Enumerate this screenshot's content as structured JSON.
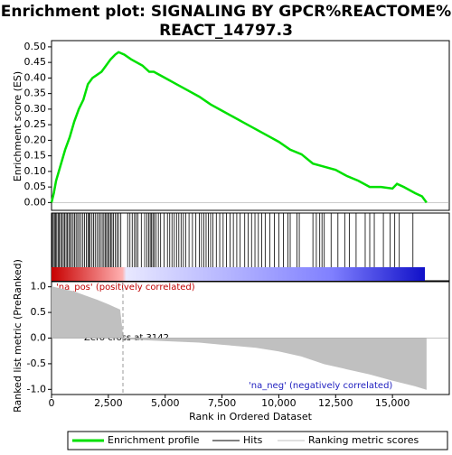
{
  "title": "Enrichment plot: SIGNALING BY GPCR%REACTOME%\nREACT_14797.3",
  "legend": [
    "Enrichment profile",
    "Hits",
    "Ranking metric scores"
  ],
  "chart_data": [
    {
      "type": "line",
      "ylabel": "Enrichment score (ES)",
      "color": "#00e000",
      "x": [
        0,
        100,
        200,
        400,
        600,
        800,
        1000,
        1200,
        1400,
        1600,
        1800,
        2000,
        2200,
        2400,
        2600,
        2800,
        2950,
        3200,
        3500,
        4000,
        4300,
        4500,
        5000,
        5500,
        6000,
        6500,
        7000,
        7500,
        8000,
        8500,
        9000,
        9500,
        10000,
        10500,
        11000,
        11500,
        12000,
        12500,
        13000,
        13500,
        14000,
        14500,
        15000,
        15200,
        15500,
        16000,
        16300,
        16500
      ],
      "values": [
        0,
        0.03,
        0.07,
        0.12,
        0.17,
        0.21,
        0.26,
        0.3,
        0.33,
        0.38,
        0.4,
        0.41,
        0.42,
        0.44,
        0.46,
        0.475,
        0.483,
        0.475,
        0.46,
        0.44,
        0.42,
        0.42,
        0.4,
        0.38,
        0.36,
        0.34,
        0.315,
        0.295,
        0.275,
        0.255,
        0.235,
        0.215,
        0.195,
        0.17,
        0.155,
        0.125,
        0.115,
        0.105,
        0.085,
        0.07,
        0.05,
        0.05,
        0.045,
        0.06,
        0.05,
        0.03,
        0.02,
        0
      ],
      "ylim": [
        -0.025,
        0.52
      ],
      "yticks": [
        {
          "value": 0,
          "label": "0.00"
        },
        {
          "value": 0.05,
          "label": "0.05"
        },
        {
          "value": 0.1,
          "label": "0.10"
        },
        {
          "value": 0.15,
          "label": "0.15"
        },
        {
          "value": 0.2,
          "label": "0.20"
        },
        {
          "value": 0.25,
          "label": "0.25"
        },
        {
          "value": 0.3,
          "label": "0.30"
        },
        {
          "value": 0.35,
          "label": "0.35"
        },
        {
          "value": 0.4,
          "label": "0.40"
        },
        {
          "value": 0.45,
          "label": "0.45"
        },
        {
          "value": 0.5,
          "label": "0.50"
        }
      ]
    },
    {
      "type": "hits",
      "color": "#000000",
      "positions": [
        30,
        80,
        130,
        180,
        230,
        290,
        340,
        400,
        460,
        520,
        580,
        640,
        700,
        760,
        820,
        880,
        950,
        1010,
        1080,
        1150,
        1220,
        1300,
        1380,
        1450,
        1530,
        1600,
        1650,
        1700,
        1780,
        1850,
        1920,
        2000,
        2080,
        2150,
        2230,
        2300,
        2360,
        2420,
        2480,
        2540,
        2600,
        2660,
        2720,
        2800,
        2880,
        2950,
        3050,
        3350,
        3450,
        3550,
        3650,
        3720,
        3800,
        3950,
        4100,
        4200,
        4280,
        4340,
        4400,
        4460,
        4520,
        4600,
        4700,
        4800,
        4950,
        5100,
        5200,
        5300,
        5400,
        5500,
        5600,
        5700,
        5800,
        5900,
        6050,
        6200,
        6350,
        6500,
        6600,
        6700,
        6800,
        6900,
        7000,
        7100,
        7250,
        7400,
        7550,
        7700,
        7850,
        8000,
        8150,
        8300,
        8500,
        8650,
        8800,
        8950,
        9100,
        9250,
        9400,
        9600,
        9800,
        10000,
        10200,
        10400,
        10500,
        10800,
        10900,
        11500,
        11650,
        11800,
        11900,
        12000,
        12300,
        12600,
        12900,
        13100,
        13400,
        13800,
        14000,
        14200,
        14600,
        14900,
        15100,
        15300,
        15900
      ]
    },
    {
      "type": "area",
      "xlabel": "Rank in Ordered Dataset",
      "ylabel": "Ranked list metric (PreRanked)",
      "color": "#c0c0c0",
      "x": [
        0,
        500,
        1000,
        1500,
        2000,
        2500,
        3000,
        3142,
        3500,
        5000,
        6500,
        7500,
        9000,
        10000,
        11000,
        12000,
        13000,
        14000,
        15000,
        16000,
        16500
      ],
      "values": [
        1.0,
        0.95,
        0.9,
        0.82,
        0.74,
        0.65,
        0.55,
        0,
        -0.02,
        -0.05,
        -0.08,
        -0.12,
        -0.18,
        -0.25,
        -0.35,
        -0.5,
        -0.6,
        -0.7,
        -0.82,
        -0.93,
        -1.0
      ],
      "xlim": [
        0,
        17500
      ],
      "xticks": [
        0,
        {
          "value": 2500,
          "label": "2,500"
        },
        {
          "value": 5000,
          "label": "5,000"
        },
        {
          "value": 7500,
          "label": "7,500"
        },
        {
          "value": 10000,
          "label": "10,000"
        },
        {
          "value": 12500,
          "label": "12,500"
        },
        {
          "value": 15000,
          "label": "15,000"
        }
      ],
      "ylim": [
        -1.1,
        1.1
      ],
      "yticks": [
        {
          "value": 1,
          "label": "1.0"
        },
        {
          "value": 0.5,
          "label": "0.5"
        },
        {
          "value": 0,
          "label": "0.0"
        },
        {
          "value": -0.5,
          "label": "-0.5"
        },
        {
          "value": -1,
          "label": "-1.0"
        }
      ],
      "zero_cross": 3142,
      "annotations": [
        "'na_pos' (positively correlated)",
        "Zero cross at 3142",
        "'na_neg' (negatively correlated)"
      ]
    }
  ]
}
